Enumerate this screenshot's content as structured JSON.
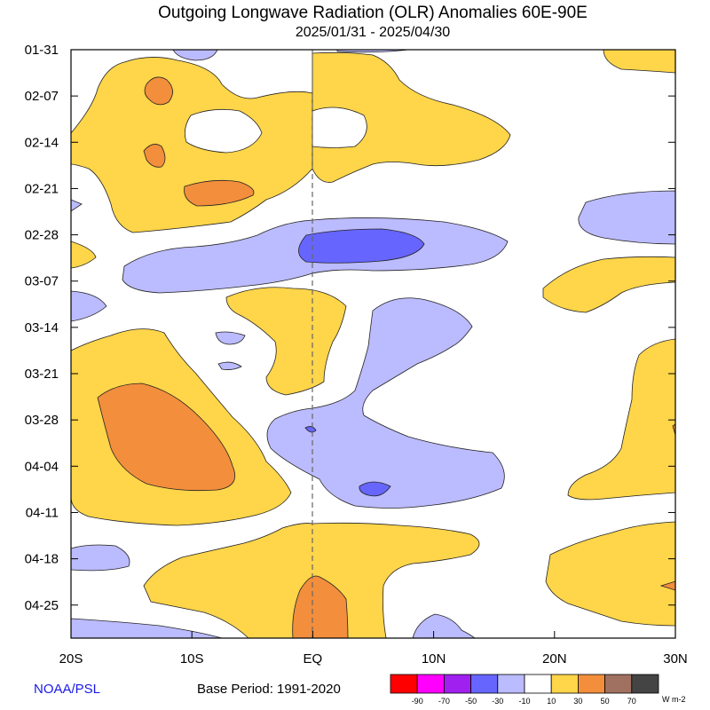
{
  "chart_data": {
    "type": "heatmap",
    "title": "Outgoing Longwave Radiation (OLR) Anomalies 60E-90E",
    "subtitle": "2025/01/31 - 2025/04/30",
    "x_ticks": [
      "20S",
      "10S",
      "EQ",
      "10N",
      "20N",
      "30N"
    ],
    "x_values": [
      -20,
      -10,
      0,
      10,
      20,
      30
    ],
    "xlim": [
      -20,
      30
    ],
    "y_ticks": [
      "01-31",
      "02-07",
      "02-14",
      "02-21",
      "02-28",
      "03-07",
      "03-14",
      "03-21",
      "03-28",
      "04-04",
      "04-11",
      "04-18",
      "04-25"
    ],
    "y_range_days": 89,
    "legend": {
      "levels": [
        "-90",
        "-70",
        "-50",
        "-30",
        "-10",
        "10",
        "30",
        "50",
        "70"
      ],
      "colors": [
        "#ff0000",
        "#ff00ff",
        "#a020f0",
        "#6666ff",
        "#bbbbff",
        "#ffffff",
        "#ffd54a",
        "#f28e3c",
        "#a07060",
        "#444444"
      ],
      "units": "W m-2"
    },
    "regions": [
      {
        "level": 10,
        "color": "#ffd54a",
        "date": "02-14",
        "lat": -8,
        "desc": "positive anomaly 20S-EQ early Feb"
      },
      {
        "level": 10,
        "color": "#ffd54a",
        "date": "02-10",
        "lat": 6,
        "desc": "positive anomaly EQ-15N early Feb"
      },
      {
        "level": 30,
        "color": "#f28e3c",
        "date": "02-06",
        "lat": -14,
        "desc": "strong positive"
      },
      {
        "level": 30,
        "color": "#f28e3c",
        "date": "02-14",
        "lat": -14,
        "desc": "strong positive"
      },
      {
        "level": 30,
        "color": "#f28e3c",
        "date": "02-20",
        "lat": -10,
        "desc": "strong positive"
      },
      {
        "level": -10,
        "color": "#bbbbff",
        "date": "03-01",
        "lat": 0,
        "desc": "negative band 15S-15N"
      },
      {
        "level": -30,
        "color": "#6666ff",
        "date": "02-28",
        "lat": 3,
        "desc": "strong negative core"
      },
      {
        "level": -10,
        "color": "#bbbbff",
        "date": "02-27",
        "lat": 25,
        "desc": "negative 20N-30N"
      },
      {
        "level": 10,
        "color": "#ffd54a",
        "date": "03-12",
        "lat": -1,
        "desc": "positive near EQ mid March"
      },
      {
        "level": 10,
        "color": "#ffd54a",
        "date": "03-07",
        "lat": 24,
        "desc": "positive 20N-30N"
      },
      {
        "level": -10,
        "color": "#bbbbff",
        "date": "03-28",
        "lat": 6,
        "desc": "negative EQ-15N late March"
      },
      {
        "level": -30,
        "color": "#6666ff",
        "date": "04-05",
        "lat": 5,
        "desc": "strong negative spot"
      },
      {
        "level": 10,
        "color": "#ffd54a",
        "date": "03-30",
        "lat": -13,
        "desc": "positive 20S-5S"
      },
      {
        "level": 30,
        "color": "#f28e3c",
        "date": "03-30",
        "lat": -14,
        "desc": "strong positive 20S-10S"
      },
      {
        "level": 10,
        "color": "#ffd54a",
        "date": "04-02",
        "lat": 29,
        "desc": "positive 25N-30N"
      },
      {
        "level": 10,
        "color": "#ffd54a",
        "date": "04-22",
        "lat": -2,
        "desc": "positive 15S-15N late April"
      },
      {
        "level": 30,
        "color": "#f28e3c",
        "date": "04-27",
        "lat": 1,
        "desc": "strong positive near EQ"
      },
      {
        "level": 10,
        "color": "#ffd54a",
        "date": "04-20",
        "lat": 25,
        "desc": "positive 20N-30N"
      },
      {
        "level": -10,
        "color": "#bbbbff",
        "date": "04-18",
        "lat": -18,
        "desc": "negative"
      },
      {
        "level": -10,
        "color": "#bbbbff",
        "date": "04-27",
        "lat": -17,
        "desc": "negative"
      },
      {
        "level": -10,
        "color": "#bbbbff",
        "date": "04-28",
        "lat": 11,
        "desc": "negative"
      }
    ],
    "grid": false
  },
  "footer": {
    "credit": "NOAA/PSL",
    "base_period": "Base Period: 1991-2020"
  }
}
